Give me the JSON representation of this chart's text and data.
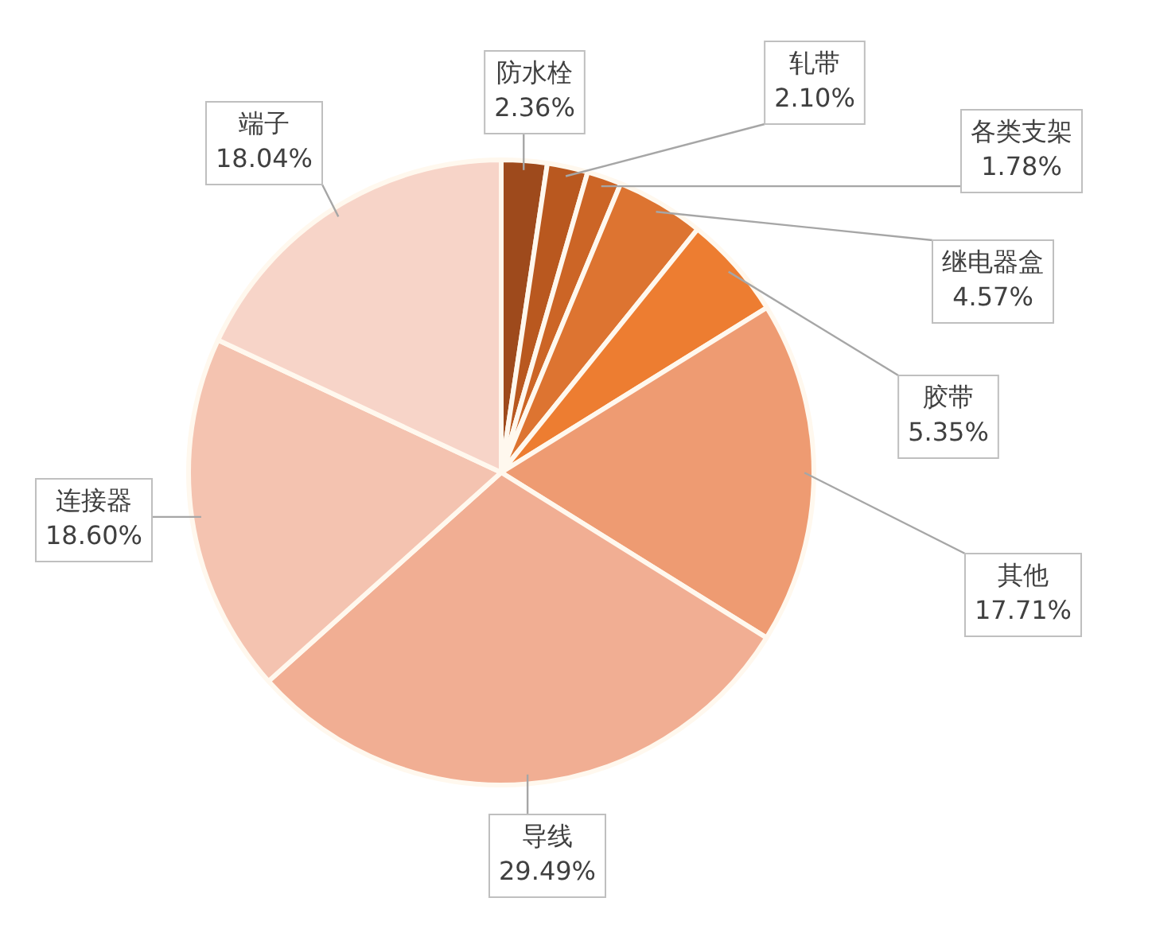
{
  "chart_data": {
    "type": "pie",
    "categories": [
      "防水栓",
      "轧带",
      "各类支架",
      "继电器盒",
      "胶带",
      "其他",
      "导线",
      "连接器",
      "端子"
    ],
    "values": [
      2.36,
      2.1,
      1.78,
      4.57,
      5.35,
      17.71,
      29.49,
      18.6,
      18.04
    ],
    "value_labels": [
      "2.36%",
      "2.10%",
      "1.78%",
      "4.57%",
      "5.35%",
      "17.71%",
      "29.49%",
      "18.60%",
      "18.04%"
    ],
    "colors": [
      "#9e4a1c",
      "#b9581f",
      "#cc6526",
      "#dd7431",
      "#ed7d31",
      "#ee9b72",
      "#f1ae93",
      "#f4c3b0",
      "#f7d4c8"
    ],
    "legend": false
  }
}
